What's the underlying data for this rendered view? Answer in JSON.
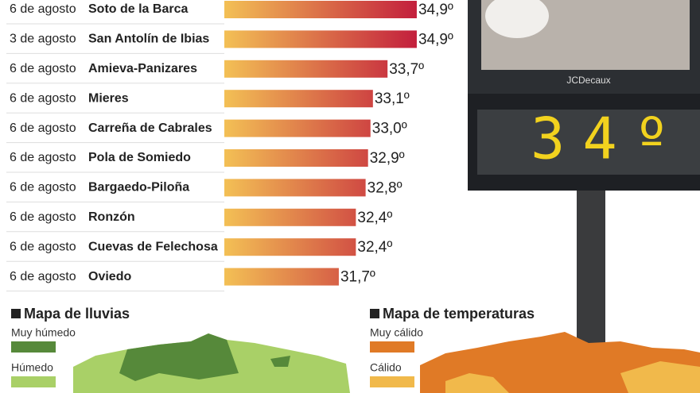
{
  "chart_data": {
    "type": "bar",
    "orientation": "horizontal",
    "categories": [
      "Soto de la Barca",
      "San Antolín de Ibias",
      "Amieva-Panizares",
      "Mieres",
      "Carreña de Cabrales",
      "Pola de Somiedo",
      "Bargaedo-Piloña",
      "Ronzón",
      "Cuevas de Felechosa",
      "Oviedo"
    ],
    "dates": [
      "6 de agosto",
      "3 de agosto",
      "6 de agosto",
      "6 de agosto",
      "6 de agosto",
      "6 de agosto",
      "6 de agosto",
      "6 de agosto",
      "6 de agosto",
      "6 de agosto"
    ],
    "values": [
      34.9,
      34.9,
      33.7,
      33.1,
      33.0,
      32.9,
      32.8,
      32.4,
      32.4,
      31.7
    ],
    "value_labels": [
      "34,9º",
      "34,9º",
      "33,7º",
      "33,1º",
      "33,0º",
      "32,9º",
      "32,8º",
      "32,4º",
      "32,4º",
      "31,7º"
    ],
    "xlim": [
      27,
      35
    ],
    "gradient": [
      "#f3c055",
      "#c21c3c"
    ],
    "legends": [
      {
        "title": "Mapa de lluvias",
        "items": [
          {
            "label": "Muy húmedo",
            "color": "#56893a"
          },
          {
            "label": "Húmedo",
            "color": "#a9d067"
          }
        ]
      },
      {
        "title": "Mapa de temperaturas",
        "items": [
          {
            "label": "Muy cálido",
            "color": "#e07a26"
          },
          {
            "label": "Cálido",
            "color": "#f1b94b"
          }
        ]
      }
    ],
    "photo": {
      "brand": "JCDecaux",
      "display": "34º"
    }
  }
}
